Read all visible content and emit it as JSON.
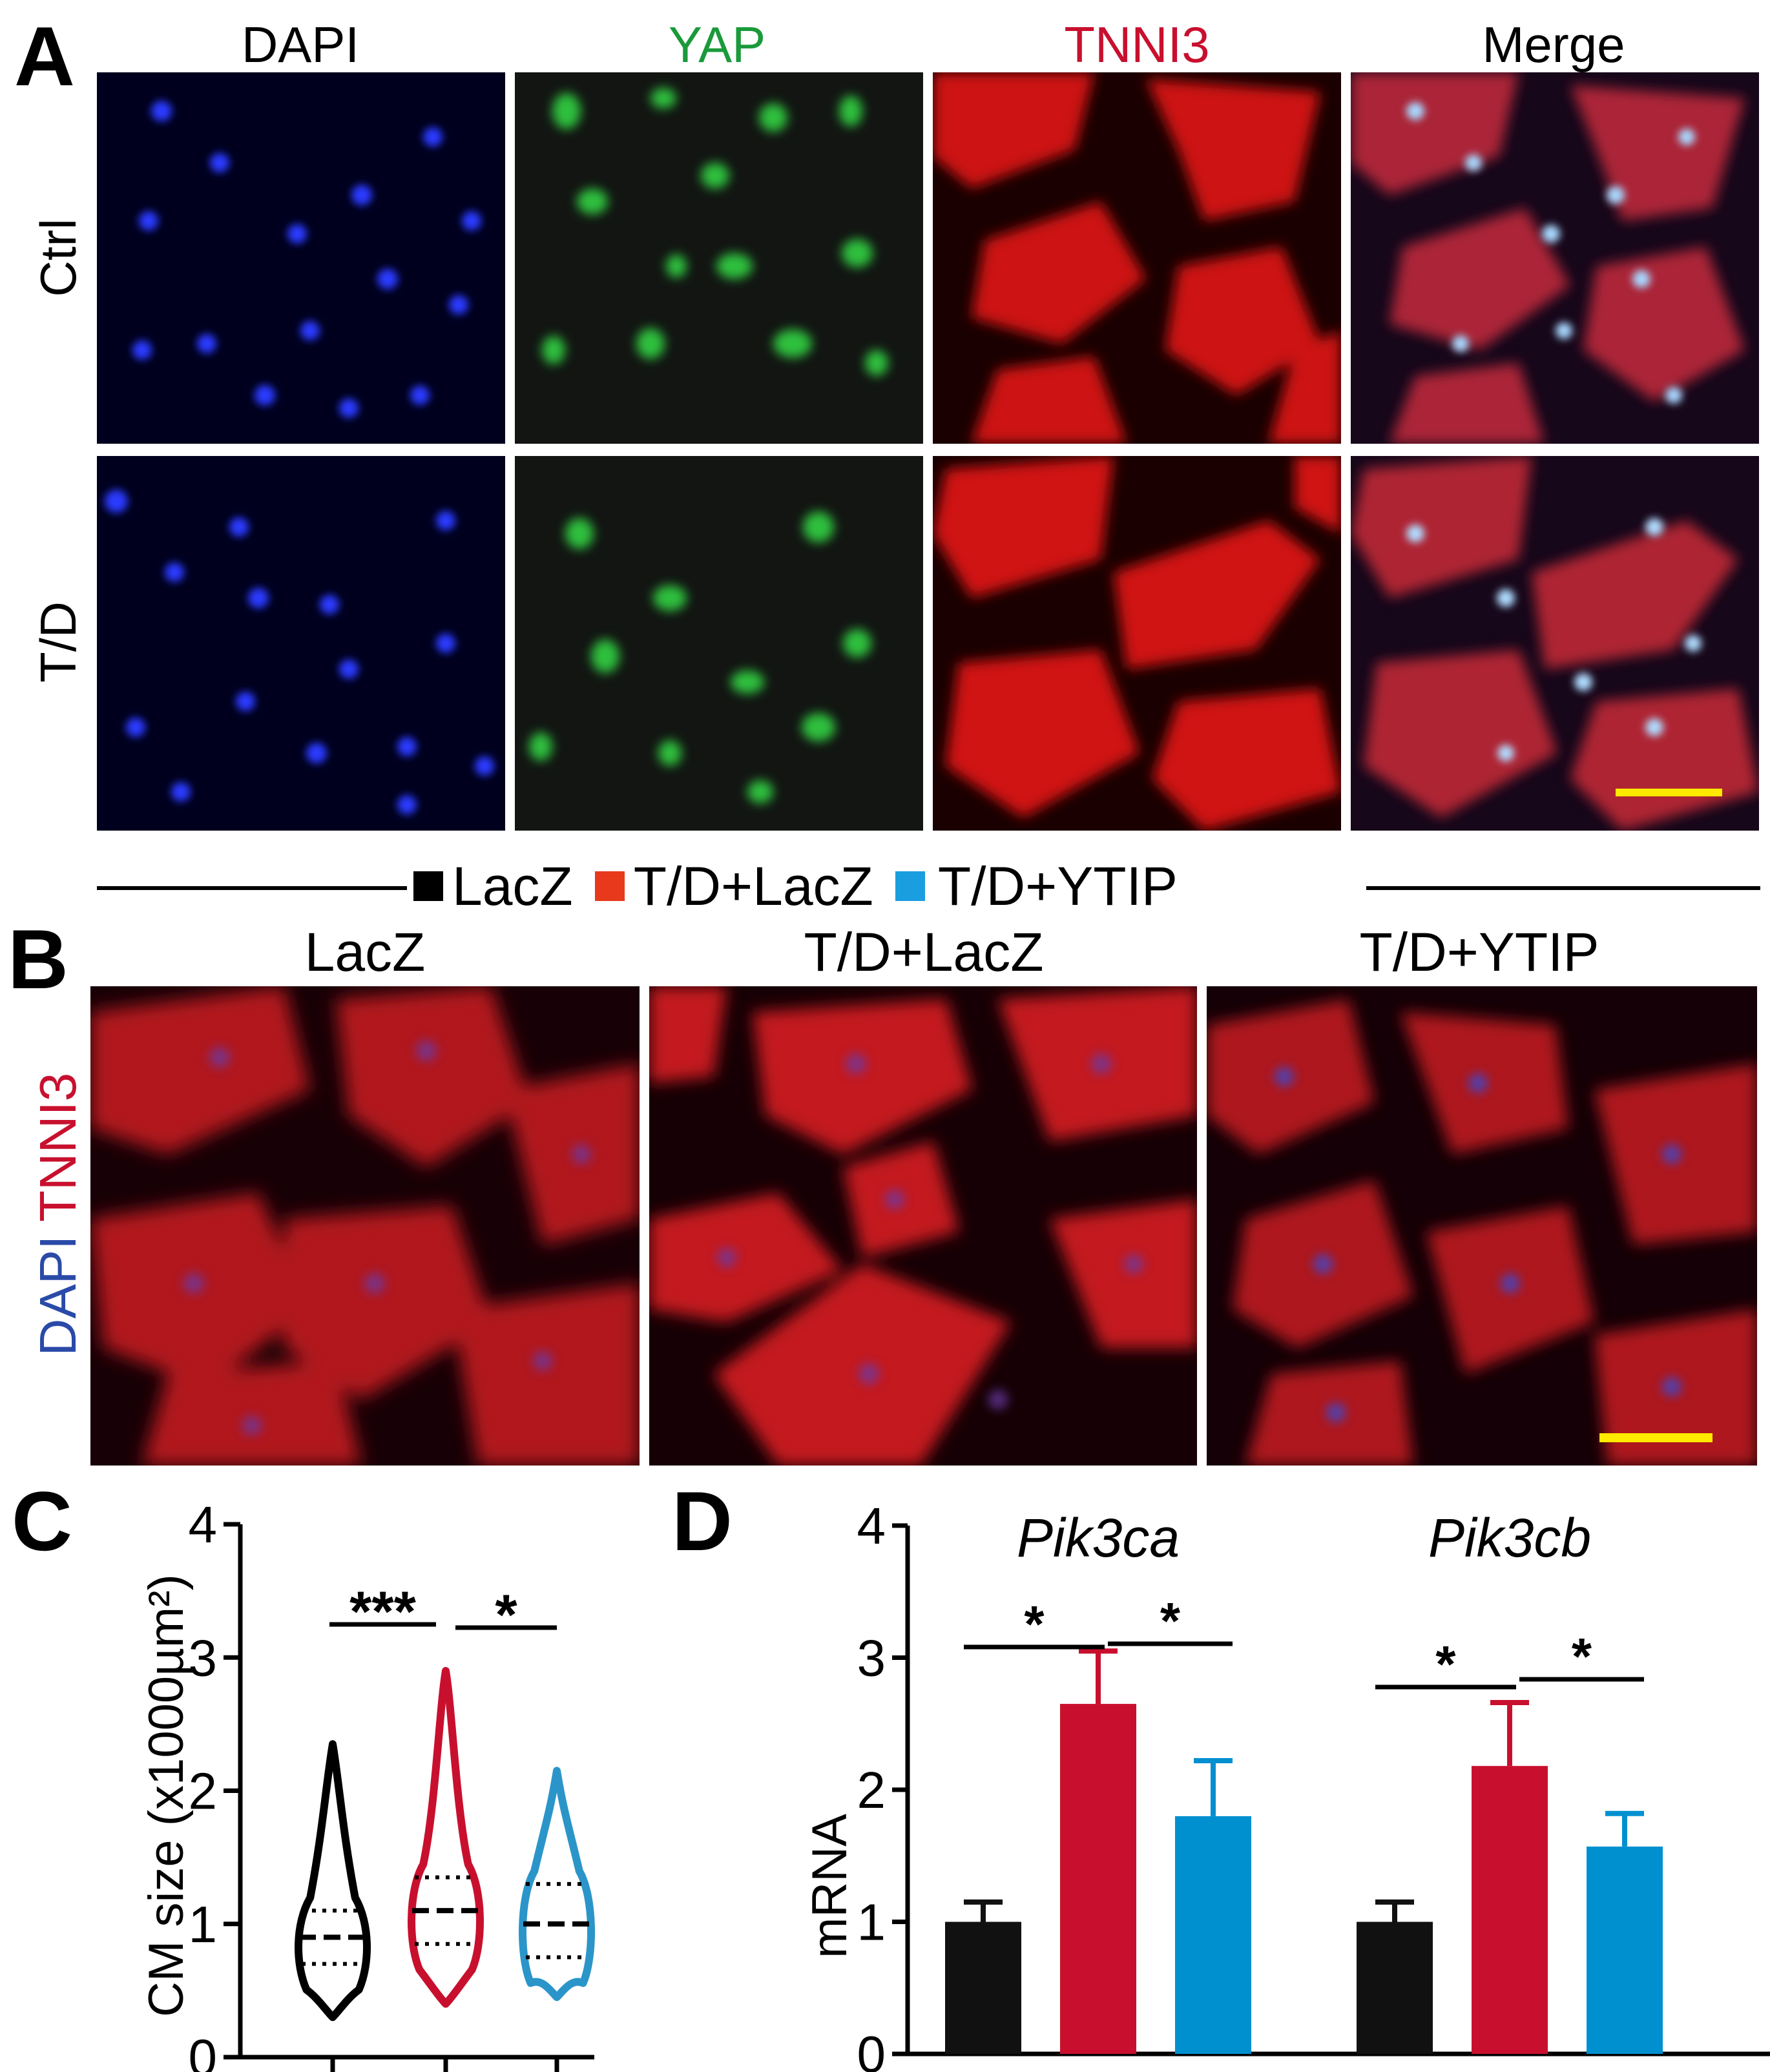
{
  "panelA": {
    "label": "A",
    "columns": [
      {
        "label": "DAPI",
        "color": "#222222"
      },
      {
        "label": "YAP",
        "color": "#1a9a3a"
      },
      {
        "label": "TNNI3",
        "color": "#c8102e"
      },
      {
        "label": "Merge",
        "color": "#222222"
      }
    ],
    "rows": [
      "Ctrl",
      "T/D"
    ]
  },
  "legend": {
    "items": [
      {
        "label": "LacZ",
        "color": "#000000"
      },
      {
        "label": "T/D+LacZ",
        "color": "#e8391c"
      },
      {
        "label": "T/D+YTIP",
        "color": "#1b9ee0"
      }
    ]
  },
  "panelB": {
    "label": "B",
    "columns": [
      "LacZ",
      "T/D+LacZ",
      "T/D+YTIP"
    ],
    "side_label_blue": "DAPI",
    "side_label_red": "TNNI3"
  },
  "panelC": {
    "label": "C"
  },
  "panelD": {
    "label": "D"
  },
  "chart_data": [
    {
      "type": "violin",
      "ylabel": "CM size (x1000µm²)",
      "ylim": [
        0,
        4
      ],
      "yticks": [
        "0",
        "1",
        "2",
        "3",
        "4"
      ],
      "groups": [
        {
          "name": "LacZ",
          "color": "#000000",
          "min": 0.3,
          "max": 2.35,
          "median": 0.9,
          "q1": 0.7,
          "q3": 1.1
        },
        {
          "name": "T/D+LacZ",
          "color": "#c8102e",
          "min": 0.4,
          "max": 2.9,
          "median": 1.1,
          "q1": 0.85,
          "q3": 1.35
        },
        {
          "name": "T/D+YTIP",
          "color": "#2b95c9",
          "min": 0.45,
          "max": 2.15,
          "median": 1.0,
          "q1": 0.75,
          "q3": 1.3
        }
      ],
      "significance": [
        {
          "from": 0,
          "to": 1,
          "label": "***"
        },
        {
          "from": 1,
          "to": 2,
          "label": "*"
        }
      ]
    },
    {
      "type": "bar",
      "ylabel": "mRNA",
      "ylim": [
        0,
        4
      ],
      "yticks": [
        "0",
        "1",
        "2",
        "3",
        "4"
      ],
      "categories": [
        "Pik3ca",
        "Pik3cb"
      ],
      "series": [
        {
          "name": "LacZ",
          "color": "#111111",
          "values": [
            1.0,
            1.0
          ],
          "errors": [
            0.15,
            0.15
          ]
        },
        {
          "name": "T/D+LacZ",
          "color": "#c8102e",
          "values": [
            2.65,
            2.18
          ],
          "errors": [
            0.4,
            0.48
          ]
        },
        {
          "name": "T/D+YTIP",
          "color": "#0090d0",
          "values": [
            1.8,
            1.57
          ],
          "errors": [
            0.42,
            0.25
          ]
        }
      ],
      "significance": [
        {
          "category": 0,
          "from": 0,
          "to": 1,
          "label": "*"
        },
        {
          "category": 0,
          "from": 1,
          "to": 2,
          "label": "*"
        },
        {
          "category": 1,
          "from": 0,
          "to": 1,
          "label": "*"
        },
        {
          "category": 1,
          "from": 1,
          "to": 2,
          "label": "*"
        }
      ]
    }
  ]
}
